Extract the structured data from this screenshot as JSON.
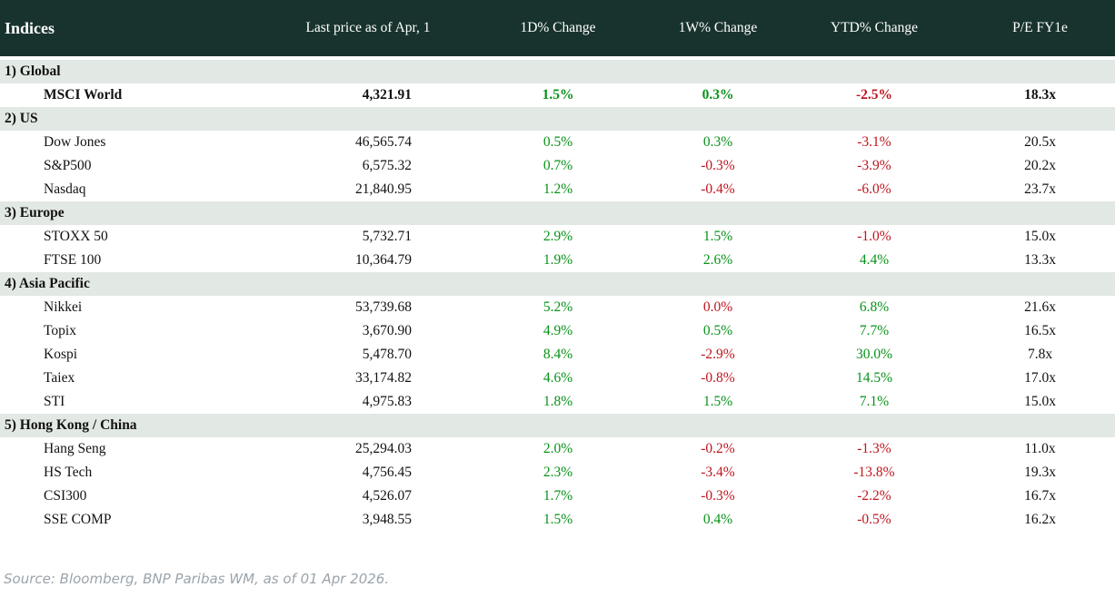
{
  "colors": {
    "header_bg": "#18332e",
    "header_text": "#ffffff",
    "section_row_bg": "#e2e8e3",
    "data_row_bg": "#ffffff",
    "positive": "#089219",
    "negative": "#bf141e",
    "body_text": "#121212",
    "source_text": "#9ba4ab"
  },
  "chart_data": {
    "type": "table",
    "title": "Indices",
    "value_columns": [
      "Last price as of Apr, 1",
      "1D% Change",
      "1W% Change",
      "YTD% Change",
      "P/E FY1e"
    ],
    "sections": [
      {
        "label": "1) Global",
        "rows": [
          {
            "name": "MSCI World",
            "last_price": "4,321.91",
            "d1_change": "1.5%",
            "d1_sign": "pos",
            "w1_change": "0.3%",
            "w1_sign": "pos",
            "ytd_change": "-2.5%",
            "ytd_sign": "neg",
            "pe_fy1e": "18.3x",
            "emphasis": true
          }
        ]
      },
      {
        "label": "2) US",
        "rows": [
          {
            "name": "Dow Jones",
            "last_price": "46,565.74",
            "d1_change": "0.5%",
            "d1_sign": "pos",
            "w1_change": "0.3%",
            "w1_sign": "pos",
            "ytd_change": "-3.1%",
            "ytd_sign": "neg",
            "pe_fy1e": "20.5x",
            "emphasis": false
          },
          {
            "name": "S&P500",
            "last_price": "6,575.32",
            "d1_change": "0.7%",
            "d1_sign": "pos",
            "w1_change": "-0.3%",
            "w1_sign": "neg",
            "ytd_change": "-3.9%",
            "ytd_sign": "neg",
            "pe_fy1e": "20.2x",
            "emphasis": false
          },
          {
            "name": "Nasdaq",
            "last_price": "21,840.95",
            "d1_change": "1.2%",
            "d1_sign": "pos",
            "w1_change": "-0.4%",
            "w1_sign": "neg",
            "ytd_change": "-6.0%",
            "ytd_sign": "neg",
            "pe_fy1e": "23.7x",
            "emphasis": false
          }
        ]
      },
      {
        "label": "3) Europe",
        "rows": [
          {
            "name": "STOXX 50",
            "last_price": "5,732.71",
            "d1_change": "2.9%",
            "d1_sign": "pos",
            "w1_change": "1.5%",
            "w1_sign": "pos",
            "ytd_change": "-1.0%",
            "ytd_sign": "neg",
            "pe_fy1e": "15.0x",
            "emphasis": false
          },
          {
            "name": "FTSE 100",
            "last_price": "10,364.79",
            "d1_change": "1.9%",
            "d1_sign": "pos",
            "w1_change": "2.6%",
            "w1_sign": "pos",
            "ytd_change": "4.4%",
            "ytd_sign": "pos",
            "pe_fy1e": "13.3x",
            "emphasis": false
          }
        ]
      },
      {
        "label": "4) Asia Pacific",
        "rows": [
          {
            "name": "Nikkei",
            "last_price": "53,739.68",
            "d1_change": "5.2%",
            "d1_sign": "pos",
            "w1_change": "0.0%",
            "w1_sign": "neg",
            "ytd_change": "6.8%",
            "ytd_sign": "pos",
            "pe_fy1e": "21.6x",
            "emphasis": false
          },
          {
            "name": "Topix",
            "last_price": "3,670.90",
            "d1_change": "4.9%",
            "d1_sign": "pos",
            "w1_change": "0.5%",
            "w1_sign": "pos",
            "ytd_change": "7.7%",
            "ytd_sign": "pos",
            "pe_fy1e": "16.5x",
            "emphasis": false
          },
          {
            "name": "Kospi",
            "last_price": "5,478.70",
            "d1_change": "8.4%",
            "d1_sign": "pos",
            "w1_change": "-2.9%",
            "w1_sign": "neg",
            "ytd_change": "30.0%",
            "ytd_sign": "pos",
            "pe_fy1e": "7.8x",
            "emphasis": false
          },
          {
            "name": "Taiex",
            "last_price": "33,174.82",
            "d1_change": "4.6%",
            "d1_sign": "pos",
            "w1_change": "-0.8%",
            "w1_sign": "neg",
            "ytd_change": "14.5%",
            "ytd_sign": "pos",
            "pe_fy1e": "17.0x",
            "emphasis": false
          },
          {
            "name": "STI",
            "last_price": "4,975.83",
            "d1_change": "1.8%",
            "d1_sign": "pos",
            "w1_change": "1.5%",
            "w1_sign": "pos",
            "ytd_change": "7.1%",
            "ytd_sign": "pos",
            "pe_fy1e": "15.0x",
            "emphasis": false
          }
        ]
      },
      {
        "label": "5) Hong Kong / China",
        "rows": [
          {
            "name": "Hang Seng",
            "last_price": "25,294.03",
            "d1_change": "2.0%",
            "d1_sign": "pos",
            "w1_change": "-0.2%",
            "w1_sign": "neg",
            "ytd_change": "-1.3%",
            "ytd_sign": "neg",
            "pe_fy1e": "11.0x",
            "emphasis": false
          },
          {
            "name": "HS Tech",
            "last_price": "4,756.45",
            "d1_change": "2.3%",
            "d1_sign": "pos",
            "w1_change": "-3.4%",
            "w1_sign": "neg",
            "ytd_change": "-13.8%",
            "ytd_sign": "neg",
            "pe_fy1e": "19.3x",
            "emphasis": false
          },
          {
            "name": "CSI300",
            "last_price": "4,526.07",
            "d1_change": "1.7%",
            "d1_sign": "pos",
            "w1_change": "-0.3%",
            "w1_sign": "neg",
            "ytd_change": "-2.2%",
            "ytd_sign": "neg",
            "pe_fy1e": "16.7x",
            "emphasis": false
          },
          {
            "name": "SSE COMP",
            "last_price": "3,948.55",
            "d1_change": "1.5%",
            "d1_sign": "pos",
            "w1_change": "0.4%",
            "w1_sign": "pos",
            "ytd_change": "-0.5%",
            "ytd_sign": "neg",
            "pe_fy1e": "16.2x",
            "emphasis": false
          }
        ]
      }
    ]
  },
  "footer": {
    "source": "Source: Bloomberg, BNP Paribas WM, as of 01 Apr 2026."
  }
}
